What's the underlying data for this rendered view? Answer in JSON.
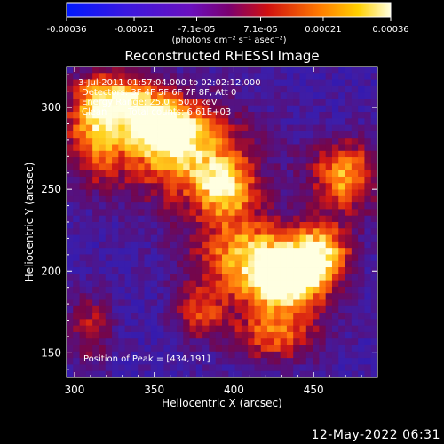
{
  "chart_data": {
    "type": "heatmap",
    "title": "Reconstructed RHESSI Image",
    "xlabel": "Heliocentric X (arcsec)",
    "ylabel": "Heliocentric Y (arcsec)",
    "xlim": [
      295,
      490
    ],
    "ylim": [
      135,
      325
    ],
    "xticks": [
      300,
      350,
      400,
      450
    ],
    "yticks": [
      150,
      200,
      250,
      300
    ],
    "x_tick_labels": [
      "300",
      "350",
      "400",
      "450"
    ],
    "y_tick_labels": [
      "150",
      "200",
      "250",
      "300"
    ],
    "colorbar": {
      "range": [
        -0.00036,
        0.00036
      ],
      "ticks": [
        -0.00036,
        -0.00021,
        -7.1e-05,
        7.1e-05,
        0.00021,
        0.00036
      ],
      "tick_labels": [
        "-0.00036",
        "-0.00021",
        "-7.1e-05",
        "7.1e-05",
        "0.00021",
        "0.00036"
      ],
      "unit_label": "(photons cm⁻² s⁻¹ asec⁻²)"
    },
    "annotations": {
      "time_range": "3-Jul-2011 01:57:04.000 to 02:02:12.000",
      "detectors": "Detectors: 3F 4F 5F 6F 7F 8F, Att 0",
      "energy": "Energy Range: 25.0 - 50.0 keV",
      "method": "Clean",
      "total_counts": "Total counts: 6.61E+03",
      "peak": "Position of Peak = [434,191]"
    },
    "peak": {
      "x": 434,
      "y": 191,
      "value": 0.00036
    },
    "emission_sources": [
      {
        "x": 434,
        "y": 193,
        "sigma_x": 18,
        "sigma_y": 14,
        "amplitude": 0.00036
      },
      {
        "x": 408,
        "y": 210,
        "sigma_x": 25,
        "sigma_y": 18,
        "amplitude": 0.00024
      },
      {
        "x": 455,
        "y": 212,
        "sigma_x": 14,
        "sigma_y": 12,
        "amplitude": 0.00024
      },
      {
        "x": 470,
        "y": 258,
        "sigma_x": 16,
        "sigma_y": 16,
        "amplitude": 0.00025
      },
      {
        "x": 372,
        "y": 270,
        "sigma_x": 30,
        "sigma_y": 22,
        "amplitude": 0.00025
      },
      {
        "x": 355,
        "y": 288,
        "sigma_x": 16,
        "sigma_y": 12,
        "amplitude": 0.00026
      },
      {
        "x": 312,
        "y": 285,
        "sigma_x": 14,
        "sigma_y": 22,
        "amplitude": 0.00019
      },
      {
        "x": 330,
        "y": 305,
        "sigma_x": 18,
        "sigma_y": 12,
        "amplitude": 0.00021
      },
      {
        "x": 395,
        "y": 250,
        "sigma_x": 12,
        "sigma_y": 12,
        "amplitude": 0.00017
      },
      {
        "x": 425,
        "y": 160,
        "sigma_x": 22,
        "sigma_y": 12,
        "amplitude": 0.00015
      },
      {
        "x": 378,
        "y": 175,
        "sigma_x": 12,
        "sigma_y": 12,
        "amplitude": 0.0001
      },
      {
        "x": 310,
        "y": 165,
        "sigma_x": 10,
        "sigma_y": 15,
        "amplitude": 0.0001
      }
    ],
    "background_level": -0.00013
  },
  "footer": {
    "date": "12-May-2022 06:31"
  }
}
